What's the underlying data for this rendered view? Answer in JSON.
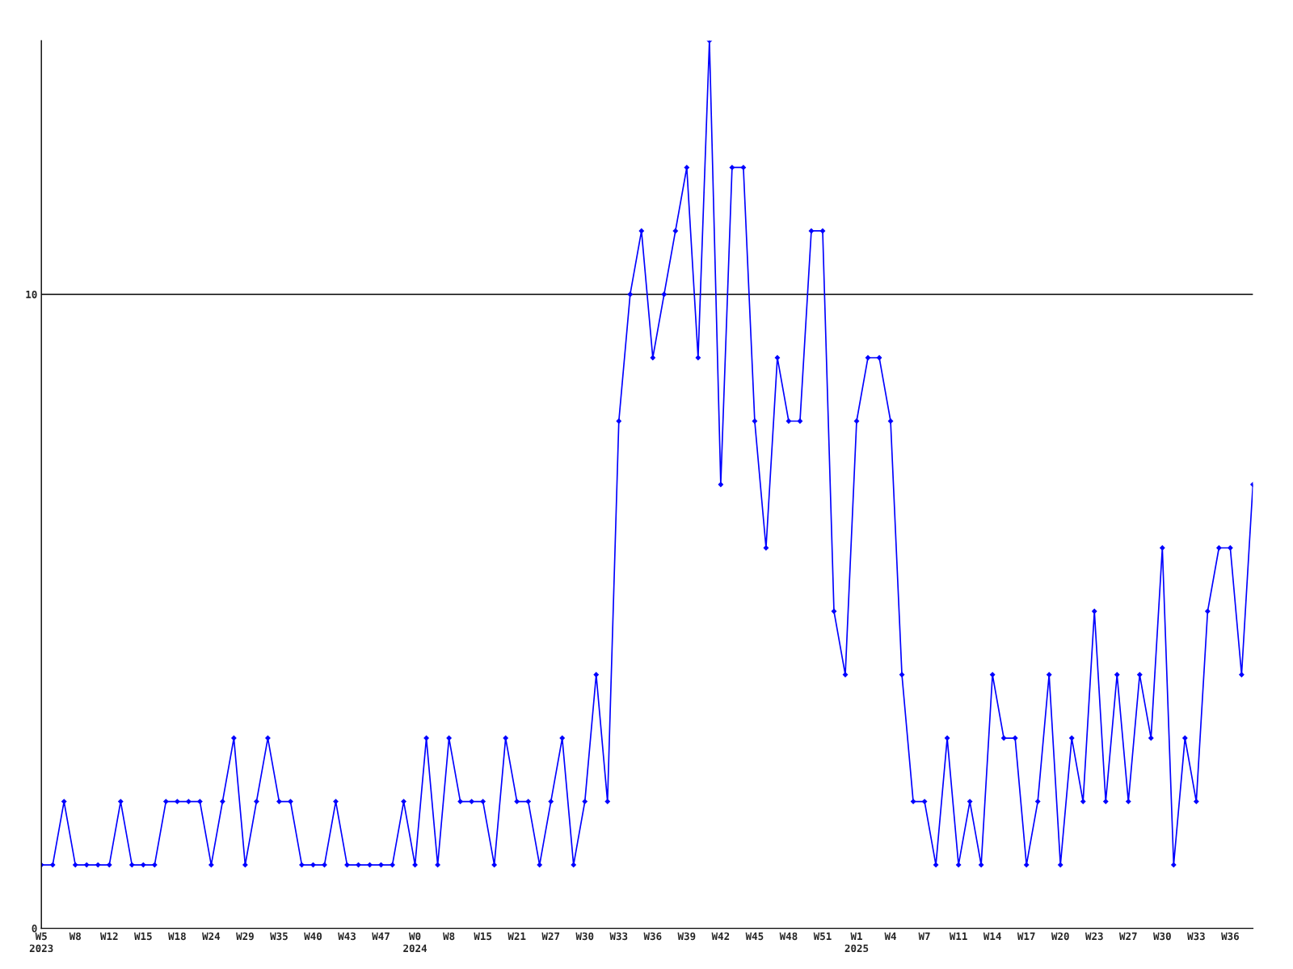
{
  "chart_data": {
    "type": "line",
    "categories": [
      "W5\n2023",
      null,
      null,
      "W8",
      null,
      null,
      "W12",
      null,
      null,
      "W15",
      null,
      null,
      "W18",
      null,
      null,
      "W24",
      null,
      null,
      "W29",
      null,
      null,
      "W35",
      null,
      null,
      "W40",
      null,
      null,
      "W43",
      null,
      null,
      "W47",
      null,
      null,
      "W0\n2024",
      null,
      null,
      "W8",
      null,
      null,
      "W15",
      null,
      null,
      "W21",
      null,
      null,
      "W27",
      null,
      null,
      "W30",
      null,
      null,
      "W33",
      null,
      null,
      "W36",
      null,
      null,
      "W39",
      null,
      null,
      "W42",
      null,
      null,
      "W45",
      null,
      null,
      "W48",
      null,
      null,
      "W51",
      null,
      null,
      "W1\n2025",
      null,
      null,
      "W4",
      null,
      null,
      "W7",
      null,
      null,
      "W11",
      null,
      null,
      "W14",
      null,
      null,
      "W17",
      null,
      null,
      "W20",
      null,
      null,
      "W23",
      null,
      null,
      "W27",
      null,
      null,
      "W30",
      null,
      null,
      "W33",
      null,
      null,
      "W36",
      null,
      null
    ],
    "series": [
      {
        "color": "#0000ff",
        "values": [
          1,
          1,
          2,
          1,
          1,
          1,
          1,
          2,
          1,
          1,
          1,
          2,
          2,
          2,
          2,
          1,
          2,
          3,
          1,
          2,
          3,
          2,
          2,
          1,
          1,
          1,
          2,
          1,
          1,
          1,
          1,
          1,
          2,
          1,
          3,
          1,
          3,
          2,
          2,
          2,
          1,
          3,
          2,
          2,
          1,
          2,
          3,
          1,
          2,
          4,
          2,
          8,
          10,
          11,
          9,
          10,
          11,
          12,
          9,
          14,
          7,
          12,
          12,
          8,
          6,
          9,
          8,
          8,
          11,
          11,
          5,
          4,
          8,
          9,
          9,
          8,
          4,
          2,
          2,
          1,
          3,
          1,
          2,
          1,
          4,
          3,
          3,
          1,
          2,
          4,
          1,
          3,
          2,
          5,
          2,
          4,
          2,
          4,
          3,
          6,
          1,
          3,
          2,
          5,
          6,
          6,
          4,
          7
        ]
      }
    ],
    "ylim": [
      0,
      14
    ],
    "yticks": [
      0,
      10
    ],
    "grid": "y",
    "marker": "diamond",
    "line_style": "solid",
    "legend": false
  }
}
